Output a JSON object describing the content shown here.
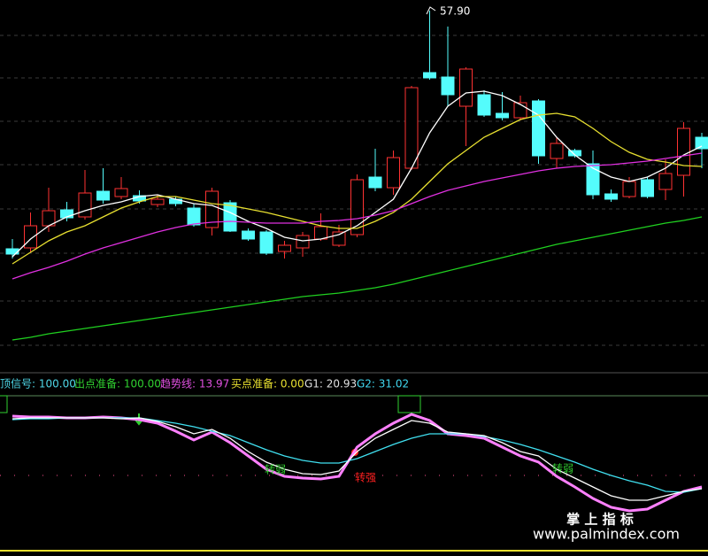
{
  "chart_data": [
    {
      "type": "candlestick",
      "ylim": [
        17.1,
        59.1
      ],
      "up_color": "#ff3232",
      "down_color": "#54fcfc",
      "open": [
        31.0,
        31.1,
        33.6,
        35.4,
        34.6,
        37.5,
        36.9,
        37.0,
        36.0,
        36.6,
        35.6,
        33.4,
        36.2,
        33.0,
        32.9,
        30.7,
        31.1,
        32.1,
        31.4,
        32.6,
        39.1,
        37.9,
        40.1,
        50.9,
        50.4,
        47.1,
        48.4,
        46.3,
        45.8,
        47.7,
        41.2,
        42.1,
        40.6,
        37.2,
        36.9,
        38.8,
        37.7,
        39.3,
        43.6
      ],
      "high": [
        32.1,
        35.1,
        37.9,
        36.3,
        39.9,
        40.1,
        39.1,
        37.6,
        37.1,
        36.9,
        36.1,
        37.9,
        36.5,
        33.3,
        33.1,
        31.9,
        32.9,
        35.0,
        33.7,
        39.4,
        42.3,
        42.1,
        49.4,
        57.9,
        56.1,
        51.5,
        48.9,
        48.7,
        48.3,
        47.9,
        43.6,
        42.3,
        42.1,
        37.7,
        39.1,
        39.1,
        41.1,
        45.3,
        44.1
      ],
      "low": [
        29.9,
        30.6,
        32.9,
        34.1,
        34.3,
        36.1,
        36.6,
        36.1,
        35.7,
        35.8,
        33.5,
        32.5,
        32.9,
        31.9,
        30.3,
        29.9,
        30.1,
        31.9,
        31.2,
        32.3,
        37.5,
        37.1,
        39.9,
        50.1,
        47.1,
        42.6,
        45.9,
        45.5,
        45.5,
        40.6,
        40.1,
        41.3,
        36.6,
        36.3,
        36.7,
        36.7,
        36.5,
        36.9,
        40.1
      ],
      "close": [
        30.4,
        33.6,
        35.3,
        34.5,
        37.3,
        36.5,
        37.8,
        36.4,
        36.6,
        36.1,
        33.7,
        37.5,
        33.0,
        32.1,
        30.5,
        31.4,
        32.5,
        33.5,
        32.9,
        38.8,
        37.9,
        41.3,
        49.2,
        50.3,
        48.4,
        51.3,
        46.1,
        45.8,
        47.5,
        41.5,
        42.9,
        41.5,
        37.1,
        36.6,
        38.6,
        36.9,
        39.5,
        44.6,
        42.3
      ],
      "series": [
        {
          "color": "#ffffff",
          "values": [
            30.1,
            32.1,
            33.6,
            34.6,
            35.3,
            35.9,
            36.3,
            36.9,
            37.1,
            36.6,
            36.1,
            35.9,
            35.1,
            34.1,
            33.3,
            32.3,
            31.9,
            32.1,
            32.6,
            33.6,
            35.1,
            36.6,
            40.1,
            44.1,
            47.1,
            48.6,
            48.8,
            48.3,
            47.3,
            46.1,
            43.6,
            41.6,
            40.1,
            39.1,
            38.6,
            39.1,
            40.1,
            41.6,
            42.6
          ]
        },
        {
          "color": "#e8e030",
          "values": [
            29.3,
            30.6,
            31.9,
            32.9,
            33.6,
            34.6,
            35.6,
            36.3,
            36.9,
            36.9,
            36.5,
            36.1,
            35.9,
            35.5,
            35.1,
            34.6,
            34.1,
            33.6,
            33.3,
            33.3,
            34.1,
            35.1,
            36.6,
            38.6,
            40.6,
            42.1,
            43.6,
            44.6,
            45.6,
            46.1,
            46.3,
            45.9,
            44.6,
            43.1,
            41.9,
            41.1,
            40.8,
            40.4,
            40.3
          ]
        },
        {
          "color": "#e030e0",
          "values": [
            27.6,
            28.3,
            28.9,
            29.6,
            30.4,
            31.1,
            31.7,
            32.3,
            32.9,
            33.4,
            33.8,
            34.0,
            34.1,
            34.0,
            33.9,
            33.9,
            33.9,
            34.1,
            34.2,
            34.4,
            34.8,
            35.3,
            36.1,
            36.9,
            37.6,
            38.1,
            38.6,
            39.0,
            39.4,
            39.8,
            40.1,
            40.3,
            40.4,
            40.5,
            40.7,
            40.9,
            41.2,
            41.5,
            41.8
          ]
        },
        {
          "color": "#20d020",
          "values": [
            20.7,
            21.0,
            21.4,
            21.7,
            22.0,
            22.3,
            22.6,
            22.9,
            23.2,
            23.5,
            23.8,
            24.1,
            24.4,
            24.7,
            25.0,
            25.3,
            25.6,
            25.8,
            26.0,
            26.3,
            26.6,
            27.0,
            27.5,
            28.0,
            28.5,
            29.0,
            29.5,
            30.0,
            30.5,
            31.0,
            31.5,
            31.9,
            32.3,
            32.7,
            33.1,
            33.5,
            33.9,
            34.2,
            34.6
          ]
        }
      ],
      "high_label": "57.90"
    },
    {
      "type": "line",
      "ylim": [
        0,
        152
      ],
      "legend": [
        {
          "text": "顶信号: 100.00",
          "color": "#4fd8e8"
        },
        {
          "text": "出点准备: 100.00",
          "color": "#30d030"
        },
        {
          "text": "趋势线: 13.97",
          "color": "#e050e0"
        },
        {
          "text": "买点准备: 0.00",
          "color": "#e8e030"
        },
        {
          "text": "G1: 20.93",
          "color": "#e0e0e0"
        },
        {
          "text": "G2: 31.02",
          "color": "#40d8f0"
        }
      ],
      "series": [
        {
          "color": "#ff80ff",
          "values": [
            130,
            129,
            129,
            128,
            128,
            129,
            128,
            126,
            122,
            113,
            103,
            112,
            100,
            85,
            70,
            62,
            60,
            59,
            62,
            95,
            110,
            122,
            132,
            125,
            110,
            108,
            105,
            95,
            85,
            78,
            62,
            50,
            37,
            27,
            23,
            25,
            35,
            45,
            50
          ]
        },
        {
          "color": "#40e0f0",
          "values": [
            126,
            127,
            127,
            128,
            128,
            128,
            128,
            128,
            125,
            122,
            118,
            113,
            108,
            100,
            92,
            85,
            80,
            77,
            77,
            82,
            90,
            98,
            105,
            110,
            110,
            110,
            107,
            103,
            98,
            92,
            85,
            78,
            70,
            63,
            57,
            52,
            45,
            44,
            48
          ]
        },
        {
          "color": "#ffffff",
          "values": [
            127,
            128,
            128,
            128,
            128,
            128,
            127,
            128,
            124,
            118,
            110,
            115,
            105,
            90,
            78,
            70,
            65,
            64,
            68,
            90,
            105,
            115,
            125,
            122,
            112,
            110,
            108,
            100,
            90,
            85,
            70,
            60,
            50,
            40,
            35,
            35,
            40,
            45,
            48
          ]
        }
      ],
      "annotations": [
        {
          "text": "转弱",
          "color": "#30d030"
        },
        {
          "text": "转强",
          "color": "#ff2020"
        },
        {
          "text": "转弱",
          "color": "#30d030"
        }
      ]
    }
  ],
  "watermark": {
    "title": "掌 上 指 标",
    "url": "www.palmindex.com"
  }
}
